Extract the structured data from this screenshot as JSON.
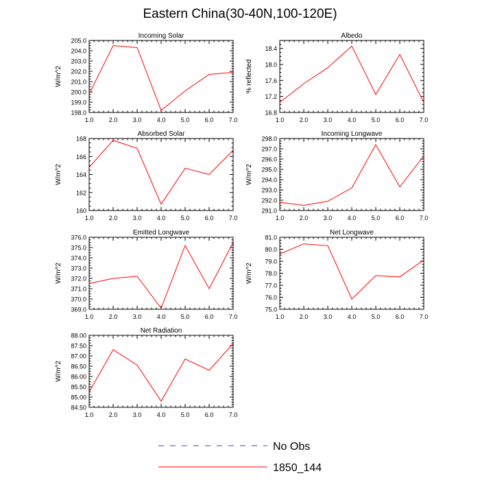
{
  "title": "Eastern China(30-40N,100-120E)",
  "colors": {
    "series": "#ff0000",
    "obs": "#3b3bb3",
    "axis": "#000000"
  },
  "legend": [
    {
      "label": "No Obs",
      "style": "dashed",
      "color": "#3b3bb3"
    },
    {
      "label": "1850_144",
      "style": "solid",
      "color": "#ff0000"
    }
  ],
  "chart_data": [
    {
      "id": "incoming-solar",
      "type": "line",
      "title": "Incoming Solar",
      "ylabel": "W/m^2",
      "x": [
        1,
        2,
        3,
        4,
        5,
        6,
        7
      ],
      "xticks": [
        "1.0",
        "2.0",
        "3.0",
        "4.0",
        "5.0",
        "6.0",
        "7.0"
      ],
      "ylim": [
        198,
        205
      ],
      "yticks": [
        "198.0",
        "199.0",
        "200.0",
        "201.0",
        "202.0",
        "203.0",
        "204.0",
        "205.0"
      ],
      "series": [
        {
          "name": "1850_144",
          "values": [
            199.8,
            204.5,
            204.3,
            198.2,
            200.1,
            201.7,
            201.9
          ]
        }
      ]
    },
    {
      "id": "albedo",
      "type": "line",
      "title": "Albedo",
      "ylabel": "% reflected",
      "x": [
        1,
        2,
        3,
        4,
        5,
        6,
        7
      ],
      "xticks": [
        "1.0",
        "2.0",
        "3.0",
        "4.0",
        "5.0",
        "6.0",
        "7.0"
      ],
      "ylim": [
        16.8,
        18.6
      ],
      "yticks": [
        "16.8",
        "17.2",
        "17.6",
        "18.0",
        "18.4"
      ],
      "series": [
        {
          "name": "1850_144",
          "values": [
            17.05,
            17.52,
            17.92,
            18.46,
            17.25,
            18.25,
            17.05
          ]
        }
      ]
    },
    {
      "id": "absorbed-solar",
      "type": "line",
      "title": "Absorbed Solar",
      "ylabel": "W/m^2",
      "x": [
        1,
        2,
        3,
        4,
        5,
        6,
        7
      ],
      "xticks": [
        "1.0",
        "2.0",
        "3.0",
        "4.0",
        "5.0",
        "6.0",
        "7.0"
      ],
      "ylim": [
        160,
        168
      ],
      "yticks": [
        "160",
        "162",
        "164",
        "166",
        "168"
      ],
      "series": [
        {
          "name": "1850_144",
          "values": [
            164.8,
            167.8,
            166.9,
            160.7,
            164.7,
            164.0,
            166.7
          ]
        }
      ]
    },
    {
      "id": "incoming-longwave",
      "type": "line",
      "title": "Incoming Longwave",
      "ylabel": "W/m^2",
      "x": [
        1,
        2,
        3,
        4,
        5,
        6,
        7
      ],
      "xticks": [
        "1.0",
        "2.0",
        "3.0",
        "4.0",
        "5.0",
        "6.0",
        "7.0"
      ],
      "ylim": [
        291,
        298
      ],
      "yticks": [
        "291.0",
        "292.0",
        "293.0",
        "294.0",
        "295.0",
        "296.0",
        "297.0",
        "298.0"
      ],
      "series": [
        {
          "name": "1850_144",
          "values": [
            291.8,
            291.5,
            291.9,
            293.2,
            297.4,
            293.3,
            296.3
          ]
        }
      ]
    },
    {
      "id": "emitted-longwave",
      "type": "line",
      "title": "Emitted Longwave",
      "ylabel": "W/m^2",
      "x": [
        1,
        2,
        3,
        4,
        5,
        6,
        7
      ],
      "xticks": [
        "1.0",
        "2.0",
        "3.0",
        "4.0",
        "5.0",
        "6.0",
        "7.0"
      ],
      "ylim": [
        369,
        376
      ],
      "yticks": [
        "369.0",
        "370.0",
        "371.0",
        "372.0",
        "373.0",
        "374.0",
        "375.0",
        "376.0"
      ],
      "series": [
        {
          "name": "1850_144",
          "values": [
            371.5,
            372.0,
            372.2,
            369.1,
            375.2,
            371.0,
            375.5
          ]
        }
      ]
    },
    {
      "id": "net-longwave",
      "type": "line",
      "title": "Net Longwave",
      "ylabel": "W/m^2",
      "x": [
        1,
        2,
        3,
        4,
        5,
        6,
        7
      ],
      "xticks": [
        "1.0",
        "2.0",
        "3.0",
        "4.0",
        "5.0",
        "6.0",
        "7.0"
      ],
      "ylim": [
        75,
        81
      ],
      "yticks": [
        "75.0",
        "76.0",
        "77.0",
        "78.0",
        "79.0",
        "80.0",
        "81.0"
      ],
      "series": [
        {
          "name": "1850_144",
          "values": [
            79.6,
            80.45,
            80.3,
            75.85,
            77.8,
            77.7,
            79.1
          ]
        }
      ]
    },
    {
      "id": "net-radiation",
      "type": "line",
      "title": "Net Radiation",
      "ylabel": "W/m^2",
      "x": [
        1,
        2,
        3,
        4,
        5,
        6,
        7
      ],
      "xticks": [
        "1.0",
        "2.0",
        "3.0",
        "4.0",
        "5.0",
        "6.0",
        "7.0"
      ],
      "ylim": [
        84.5,
        88
      ],
      "yticks": [
        "84.50",
        "85.00",
        "85.50",
        "86.00",
        "86.50",
        "87.00",
        "87.50",
        "88.00"
      ],
      "series": [
        {
          "name": "1850_144",
          "values": [
            85.25,
            87.3,
            86.55,
            84.8,
            86.85,
            86.3,
            87.6
          ]
        }
      ]
    }
  ]
}
